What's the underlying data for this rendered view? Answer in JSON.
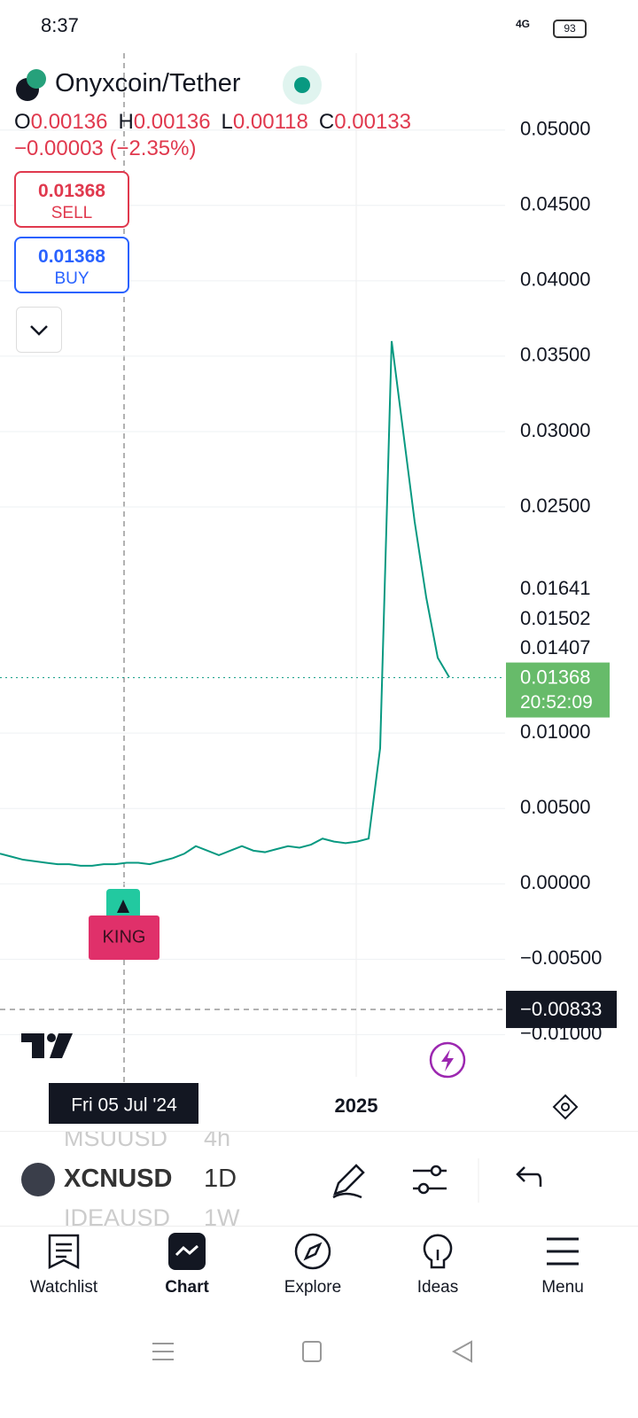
{
  "status_bar": {
    "time": "8:37",
    "network": "4G",
    "battery": "93"
  },
  "header": {
    "symbol": "Onyxcoin/Tether",
    "ohlc": [
      {
        "key": "O",
        "value": "0.00136"
      },
      {
        "key": "H",
        "value": "0.00136"
      },
      {
        "key": "L",
        "value": "0.00118"
      },
      {
        "key": "C",
        "value": "0.00133"
      }
    ],
    "change": "−0.00003 (−2.35%)"
  },
  "trade": {
    "sell_price": "0.01368",
    "sell_label": "SELL",
    "buy_price": "0.01368",
    "buy_label": "BUY"
  },
  "chart_data": {
    "type": "line",
    "color": "#089981",
    "ylim": [
      -0.0128,
      0.0551
    ],
    "yticks": [
      {
        "value": 0.05,
        "label": "0.05000"
      },
      {
        "value": 0.045,
        "label": "0.04500"
      },
      {
        "value": 0.04,
        "label": "0.04000"
      },
      {
        "value": 0.035,
        "label": "0.03500"
      },
      {
        "value": 0.03,
        "label": "0.03000"
      },
      {
        "value": 0.025,
        "label": "0.02500"
      },
      {
        "value": 0.01,
        "label": "0.01000"
      },
      {
        "value": 0.005,
        "label": "0.00500"
      },
      {
        "value": 0,
        "label": "0.00000"
      },
      {
        "value": -0.005,
        "label": "−0.00500"
      },
      {
        "value": -0.01,
        "label": "−0.01000"
      }
    ],
    "values": [
      0.002,
      0.0018,
      0.0016,
      0.0015,
      0.0014,
      0.0013,
      0.0013,
      0.0012,
      0.0012,
      0.0013,
      0.0013,
      0.0014,
      0.0014,
      0.0013,
      0.0015,
      0.0017,
      0.002,
      0.0025,
      0.0022,
      0.0019,
      0.0022,
      0.0025,
      0.0022,
      0.0021,
      0.0023,
      0.0025,
      0.0024,
      0.0026,
      0.003,
      0.0028,
      0.0027,
      0.0028,
      0.003,
      0.009,
      0.036,
      0.03,
      0.024,
      0.019,
      0.015,
      0.0137
    ],
    "price_scale_labels": [
      "0.01641",
      "0.01502",
      "0.01407"
    ],
    "last_price": {
      "value": 0.01368,
      "label": "0.01368"
    },
    "countdown": "20:52:09",
    "crosshair_price": {
      "value": -0.00833,
      "label": "−0.00833"
    },
    "crosshair_date": "Fri 05 Jul '24",
    "x_labels": [
      "2025"
    ],
    "marker": "KING"
  },
  "toolbar": {
    "symbol": "XCNUSD",
    "interval": "1D",
    "prev_symbol": "MSUUSD",
    "prev_interval": "4h",
    "next_symbol": "IDEAUSD",
    "next_interval": "1W"
  },
  "nav": [
    "Watchlist",
    "Chart",
    "Explore",
    "Ideas",
    "Menu"
  ]
}
